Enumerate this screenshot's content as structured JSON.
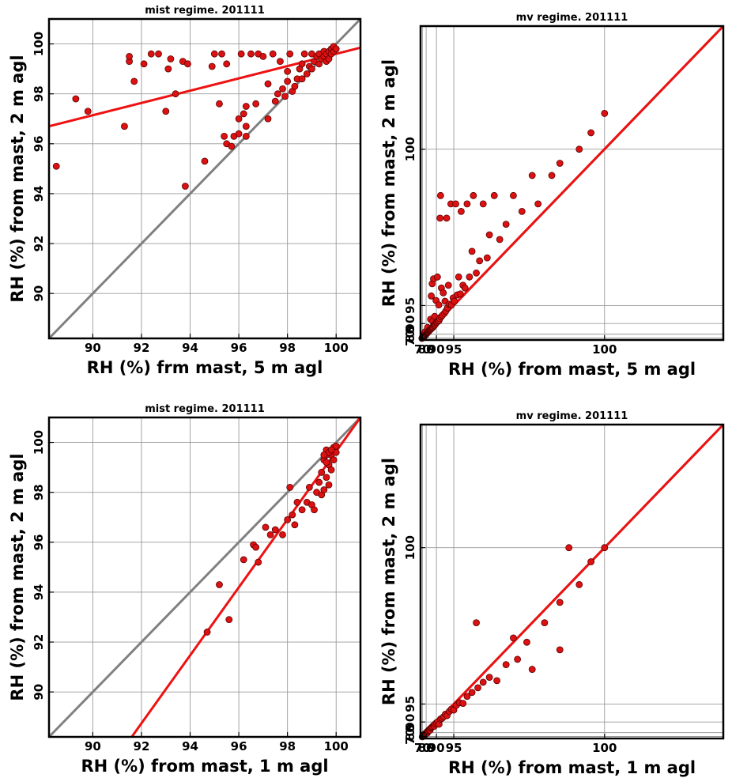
{
  "figure": {
    "accent_color": "#ee1111",
    "identity_color": "#808080",
    "point_color": "#dd1111",
    "point_edge_color": "#550000"
  },
  "chart_data": [
    {
      "id": "p1",
      "type": "scatter",
      "title": "mist regime. 201111",
      "xlabel": "RH (%) frm mast, 5 m agl",
      "ylabel": "RH (%) from mast, 2 m agl",
      "xlim": [
        88.2,
        101
      ],
      "ylim": [
        88.2,
        101
      ],
      "scale": "linear",
      "grid": true,
      "xticks": [
        90,
        92,
        94,
        96,
        98,
        100
      ],
      "yticks": [
        90,
        92,
        94,
        96,
        98,
        100
      ],
      "identity_line": true,
      "fit_line": [
        [
          88.2,
          96.7
        ],
        [
          101,
          99.85
        ]
      ],
      "points": [
        [
          88.5,
          95.1
        ],
        [
          89.3,
          97.8
        ],
        [
          89.8,
          97.3
        ],
        [
          91.3,
          96.7
        ],
        [
          91.5,
          99.3
        ],
        [
          91.5,
          99.5
        ],
        [
          91.7,
          98.5
        ],
        [
          92.1,
          99.2
        ],
        [
          92.4,
          99.6
        ],
        [
          92.7,
          99.6
        ],
        [
          93,
          97.3
        ],
        [
          93.1,
          99
        ],
        [
          93.2,
          99.4
        ],
        [
          93.4,
          98
        ],
        [
          93.7,
          99.3
        ],
        [
          93.8,
          94.3
        ],
        [
          93.9,
          99.2
        ],
        [
          94.6,
          95.3
        ],
        [
          94.9,
          99.1
        ],
        [
          95,
          99.6
        ],
        [
          95.2,
          97.6
        ],
        [
          95.3,
          99.6
        ],
        [
          95.4,
          96.3
        ],
        [
          95.5,
          99.2
        ],
        [
          95.5,
          96
        ],
        [
          95.7,
          95.9
        ],
        [
          95.8,
          96.3
        ],
        [
          96,
          96.4
        ],
        [
          96,
          97
        ],
        [
          96.2,
          97.2
        ],
        [
          96.1,
          99.6
        ],
        [
          96.3,
          96.3
        ],
        [
          96.3,
          96.7
        ],
        [
          96.3,
          97.5
        ],
        [
          96.5,
          99.6
        ],
        [
          96.7,
          97.6
        ],
        [
          96.8,
          99.6
        ],
        [
          97,
          99.5
        ],
        [
          97.2,
          97
        ],
        [
          97.2,
          98.4
        ],
        [
          97.4,
          99.6
        ],
        [
          97.5,
          97.7
        ],
        [
          97.6,
          98
        ],
        [
          97.7,
          99.3
        ],
        [
          97.8,
          98.2
        ],
        [
          97.9,
          97.9
        ],
        [
          98,
          98.5
        ],
        [
          98,
          98.9
        ],
        [
          98.1,
          99.6
        ],
        [
          98.2,
          98.1
        ],
        [
          98.3,
          98.3
        ],
        [
          98.4,
          98.6
        ],
        [
          98.5,
          99
        ],
        [
          98.6,
          98.6
        ],
        [
          98.6,
          99.2
        ],
        [
          98.7,
          99.6
        ],
        [
          98.8,
          98.8
        ],
        [
          98.9,
          99.1
        ],
        [
          99,
          99
        ],
        [
          99,
          99.6
        ],
        [
          99.1,
          99.3
        ],
        [
          99.2,
          99.5
        ],
        [
          99.3,
          99.2
        ],
        [
          99.3,
          99.6
        ],
        [
          99.4,
          99.4
        ],
        [
          99.5,
          99.5
        ],
        [
          99.5,
          99.7
        ],
        [
          99.6,
          99.3
        ],
        [
          99.6,
          99.6
        ],
        [
          99.7,
          99.7
        ],
        [
          99.7,
          99.4
        ],
        [
          99.8,
          99.8
        ],
        [
          99.8,
          99.6
        ],
        [
          99.9,
          99.7
        ],
        [
          99.9,
          99.9
        ],
        [
          100,
          99.8
        ]
      ]
    },
    {
      "id": "p2",
      "type": "scatter",
      "title": "mv regime. 201111",
      "xlabel": "RH (%) from mast, 5 m agl",
      "ylabel": "RH (%) from mast, 2 m agl",
      "xlim": [
        60,
        100.5
      ],
      "ylim": [
        60,
        100.5
      ],
      "scale": "reciprocal",
      "grid": true,
      "xticks": [
        70,
        80,
        90,
        95,
        100
      ],
      "yticks": [
        70,
        80,
        90,
        95,
        100
      ],
      "identity_line": true,
      "fit_line": [
        [
          60,
          62.3
        ],
        [
          100.5,
          100.5
        ]
      ],
      "points": [
        [
          67.9,
          68.6
        ],
        [
          70.4,
          72.8
        ],
        [
          71.8,
          74.8
        ],
        [
          72.1,
          73.8
        ],
        [
          74.2,
          79.1
        ],
        [
          74.6,
          74.4
        ],
        [
          76.8,
          76.9
        ],
        [
          77.9,
          78.5
        ],
        [
          78.3,
          83.6
        ],
        [
          78.6,
          77.8
        ],
        [
          79.8,
          79.8
        ],
        [
          80.5,
          80.6
        ],
        [
          81.2,
          81.3
        ],
        [
          82,
          82
        ],
        [
          82.3,
          87.6
        ],
        [
          82.6,
          82.9
        ],
        [
          83.1,
          83.4
        ],
        [
          83.6,
          83.7
        ],
        [
          84.1,
          84.4
        ],
        [
          84.6,
          85.1
        ],
        [
          85.1,
          85.6
        ],
        [
          85.6,
          85.9
        ],
        [
          85.9,
          91.8
        ],
        [
          86.1,
          86.2
        ],
        [
          86.5,
          96.2
        ],
        [
          86.6,
          86.9
        ],
        [
          87.1,
          87.3
        ],
        [
          87.3,
          97.2
        ],
        [
          87.6,
          87.6
        ],
        [
          87.8,
          91.1
        ],
        [
          88,
          88.3
        ],
        [
          88.3,
          97.5
        ],
        [
          88.4,
          89
        ],
        [
          88.8,
          88.9
        ],
        [
          89,
          92.7
        ],
        [
          89.2,
          89.6
        ],
        [
          89.5,
          89.7
        ],
        [
          89.8,
          95.7
        ],
        [
          90,
          90.5
        ],
        [
          90.3,
          90.6
        ],
        [
          90.5,
          97.6
        ],
        [
          90.8,
          91.1
        ],
        [
          91.1,
          95.1
        ],
        [
          91.2,
          91.3
        ],
        [
          91.5,
          92
        ],
        [
          91.6,
          99.3
        ],
        [
          91.8,
          99.6
        ],
        [
          92,
          92.6
        ],
        [
          92.1,
          96.9
        ],
        [
          92.4,
          93
        ],
        [
          92.7,
          96.5
        ],
        [
          93,
          93.5
        ],
        [
          93.2,
          95.6
        ],
        [
          93.4,
          94
        ],
        [
          93.6,
          99.3
        ],
        [
          93.8,
          94.6
        ],
        [
          94,
          97.1
        ],
        [
          94.2,
          95.2
        ],
        [
          94.5,
          99.5
        ],
        [
          94.6,
          95.1
        ],
        [
          94.9,
          96
        ],
        [
          95.1,
          95.6
        ],
        [
          95.3,
          99.5
        ],
        [
          95.5,
          96.3
        ],
        [
          95.7,
          97.6
        ],
        [
          95.9,
          96.4
        ],
        [
          96,
          99.4
        ],
        [
          96.2,
          97.1
        ],
        [
          96.4,
          96.9
        ],
        [
          96.6,
          99.5
        ],
        [
          96.8,
          97.6
        ],
        [
          97,
          98.6
        ],
        [
          97.1,
          99.6
        ],
        [
          97.3,
          97.8
        ],
        [
          97.5,
          98.3
        ],
        [
          97.7,
          99.5
        ],
        [
          97.9,
          98.4
        ],
        [
          98,
          99
        ],
        [
          98.2,
          99.6
        ],
        [
          98.4,
          98.9
        ],
        [
          98.6,
          99.2
        ],
        [
          98.8,
          99.6
        ],
        [
          99,
          99.4
        ],
        [
          99.2,
          99.8
        ],
        [
          99.3,
          99.5
        ],
        [
          99.5,
          99.8
        ],
        [
          99.6,
          99.9
        ],
        [
          99.8,
          100
        ],
        [
          99.9,
          100.1
        ],
        [
          100,
          100.2
        ]
      ]
    },
    {
      "id": "p3",
      "type": "scatter",
      "title": "mist regime. 201111",
      "xlabel": "RH (%) from mast, 1 m agl",
      "ylabel": "RH (%) from mast, 2 m agl",
      "xlim": [
        88.2,
        101
      ],
      "ylim": [
        88.2,
        101
      ],
      "scale": "linear",
      "grid": true,
      "xticks": [
        90,
        92,
        94,
        96,
        98,
        100
      ],
      "yticks": [
        90,
        92,
        94,
        96,
        98,
        100
      ],
      "identity_line": true,
      "fit_line": [
        [
          91.6,
          88.2
        ],
        [
          101,
          101
        ]
      ],
      "points": [
        [
          94.7,
          92.4
        ],
        [
          95.2,
          94.3
        ],
        [
          95.6,
          92.9
        ],
        [
          96.2,
          95.3
        ],
        [
          96.6,
          95.9
        ],
        [
          96.7,
          95.8
        ],
        [
          96.8,
          95.2
        ],
        [
          97.1,
          96.6
        ],
        [
          97.3,
          96.3
        ],
        [
          97.5,
          96.5
        ],
        [
          97.8,
          96.3
        ],
        [
          98,
          96.9
        ],
        [
          98.1,
          98.2
        ],
        [
          98.2,
          97.1
        ],
        [
          98.3,
          96.7
        ],
        [
          98.4,
          97.6
        ],
        [
          98.6,
          97.3
        ],
        [
          98.8,
          97.6
        ],
        [
          98.9,
          98.2
        ],
        [
          99,
          97.5
        ],
        [
          99.1,
          97.3
        ],
        [
          99.2,
          98
        ],
        [
          99.3,
          98.4
        ],
        [
          99.4,
          97.9
        ],
        [
          99.4,
          98.8
        ],
        [
          99.5,
          98.1
        ],
        [
          99.5,
          99.3
        ],
        [
          99.6,
          98.6
        ],
        [
          99.6,
          99.7
        ],
        [
          99.7,
          98.3
        ],
        [
          99.7,
          99.1
        ],
        [
          99.8,
          99.5
        ],
        [
          99.8,
          98.9
        ],
        [
          99.9,
          99.8
        ],
        [
          99.9,
          99.3
        ],
        [
          100,
          99.6
        ],
        [
          100,
          99.85
        ],
        [
          99.6,
          99.5
        ],
        [
          99.7,
          99.6
        ],
        [
          99.8,
          99.7
        ],
        [
          99.5,
          99.5
        ],
        [
          99.6,
          99.2
        ]
      ]
    },
    {
      "id": "p4",
      "type": "scatter",
      "title": "mv regime. 201111",
      "xlabel": "RH (%) from mast, 1 m agl",
      "ylabel": "RH (%) from mast, 2 m agl",
      "xlim": [
        60,
        100.5
      ],
      "ylim": [
        60,
        100.5
      ],
      "scale": "reciprocal",
      "grid": true,
      "xticks": [
        70,
        80,
        90,
        95,
        100
      ],
      "yticks": [
        70,
        80,
        90,
        95,
        100
      ],
      "identity_line": true,
      "fit_line": [
        [
          60.2,
          60
        ],
        [
          100.5,
          100.5
        ]
      ],
      "points": [
        [
          69.4,
          68.6
        ],
        [
          75.1,
          74.4
        ],
        [
          75.5,
          73
        ],
        [
          76.1,
          73.8
        ],
        [
          76.6,
          76.9
        ],
        [
          77.1,
          75.1
        ],
        [
          77.6,
          77.2
        ],
        [
          78.2,
          77.8
        ],
        [
          79.4,
          79.1
        ],
        [
          80.3,
          80.1
        ],
        [
          81.2,
          80.8
        ],
        [
          81.8,
          79.1
        ],
        [
          82.4,
          81.9
        ],
        [
          83.1,
          82.8
        ],
        [
          84,
          83.7
        ],
        [
          84.8,
          84.5
        ],
        [
          85.4,
          83.6
        ],
        [
          86.1,
          85.8
        ],
        [
          86.8,
          86.4
        ],
        [
          87.5,
          87.1
        ],
        [
          88.3,
          88
        ],
        [
          88.8,
          87.4
        ],
        [
          89.3,
          88.9
        ],
        [
          90,
          89.6
        ],
        [
          90.6,
          90.1
        ],
        [
          91.2,
          88.8
        ],
        [
          91.8,
          91.3
        ],
        [
          92.3,
          91.6
        ],
        [
          92.8,
          92.1
        ],
        [
          93.3,
          92.9
        ],
        [
          93.7,
          92.5
        ],
        [
          94.2,
          93.6
        ],
        [
          94.6,
          94.1
        ],
        [
          95,
          93.9
        ],
        [
          95.4,
          94.8
        ],
        [
          95.8,
          95.2
        ],
        [
          96.2,
          95.1
        ],
        [
          96.6,
          96
        ],
        [
          97,
          96.4
        ],
        [
          97.3,
          99.2
        ],
        [
          97.4,
          96.8
        ],
        [
          97.7,
          97.2
        ],
        [
          98,
          97.5
        ],
        [
          98.3,
          97.3
        ],
        [
          98.6,
          98.1
        ],
        [
          98.9,
          98.3
        ],
        [
          99.1,
          98.8
        ],
        [
          99.4,
          99.2
        ],
        [
          99.6,
          99.5
        ],
        [
          99.8,
          99.7
        ],
        [
          99.9,
          99.9
        ],
        [
          100,
          100
        ],
        [
          99.2,
          97.9
        ],
        [
          99.6,
          98.6
        ],
        [
          98.8,
          98.9
        ],
        [
          99.7,
          100
        ]
      ]
    }
  ]
}
